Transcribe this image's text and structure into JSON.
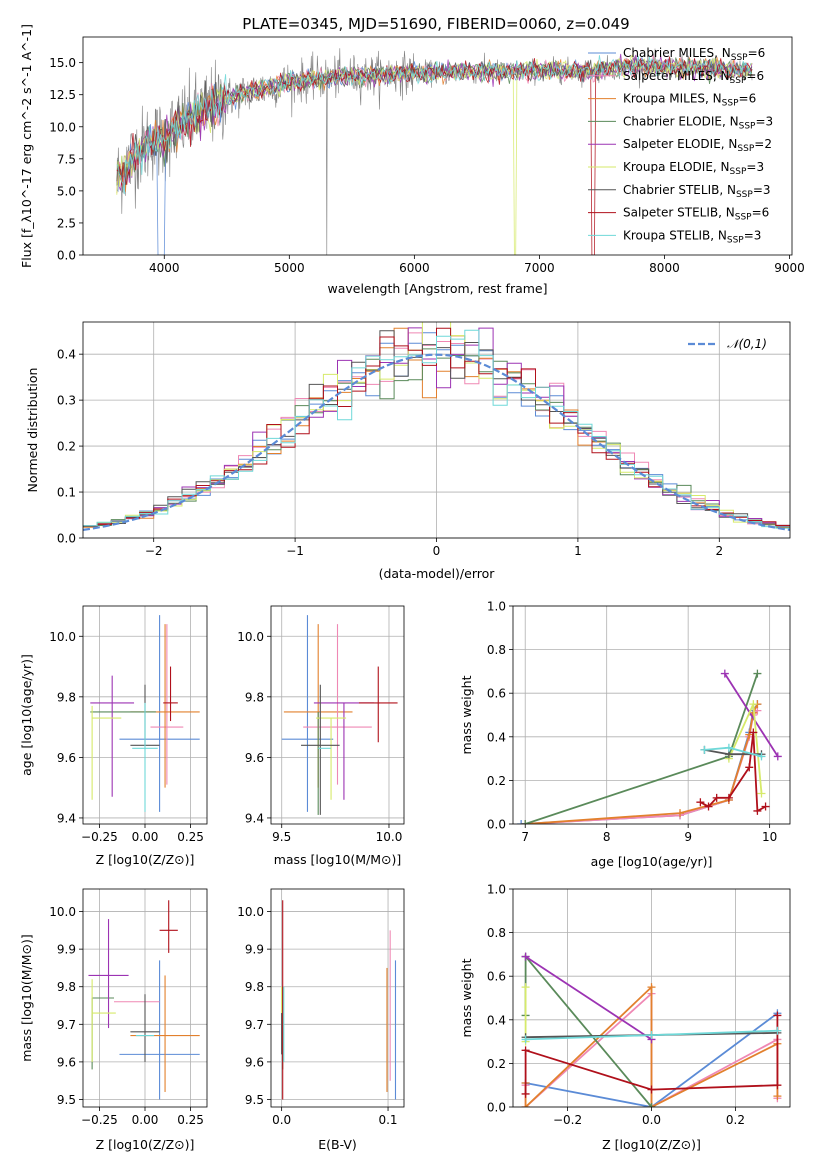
{
  "title": "PLATE=0345, MJD=51690, FIBERID=0060, z=0.049",
  "models": [
    {
      "name": "Chabrier MILES",
      "nssp": 6,
      "color": "#5b8bd6"
    },
    {
      "name": "Salpeter MILES",
      "nssp": 6,
      "color": "#ef88b4"
    },
    {
      "name": "Kroupa MILES",
      "nssp": 6,
      "color": "#e2802d"
    },
    {
      "name": "Chabrier ELODIE",
      "nssp": 3,
      "color": "#5a8a5a"
    },
    {
      "name": "Salpeter ELODIE",
      "nssp": 2,
      "color": "#9c33b3"
    },
    {
      "name": "Kroupa ELODIE",
      "nssp": 3,
      "color": "#d6ea6a"
    },
    {
      "name": "Chabrier STELIB",
      "nssp": 3,
      "color": "#555555"
    },
    {
      "name": "Salpeter STELIB",
      "nssp": 6,
      "color": "#b0101b"
    },
    {
      "name": "Kroupa STELIB",
      "nssp": 3,
      "color": "#6fd8d8"
    }
  ],
  "chart_data": [
    {
      "type": "line",
      "id": "spectrum",
      "xlabel": "wavelength [Angstrom, rest frame]",
      "ylabel": "Flux [f_λ10^-17 erg cm^-2 s^-1 A^-1]",
      "xlim": [
        3350,
        9020
      ],
      "ylim": [
        0,
        17
      ],
      "xticks": [
        4000,
        5000,
        6000,
        7000,
        8000,
        9000
      ],
      "yticks": [
        0.0,
        2.5,
        5.0,
        7.5,
        10.0,
        12.5,
        15.0
      ],
      "grid": false,
      "legend": "upper right",
      "data_series": {
        "name": "data",
        "color": "#808080"
      },
      "continuum": {
        "x": [
          3620,
          3700,
          3800,
          3900,
          4000,
          4100,
          4200,
          4300,
          4400,
          4500,
          4600,
          4800,
          5000,
          5200,
          5400,
          5600,
          5800,
          6000,
          6200,
          6400,
          6600,
          6800,
          7000,
          7200,
          7400,
          7600,
          7800,
          8000,
          8200,
          8400,
          8600,
          8700
        ],
        "y": [
          6.0,
          7.0,
          8.2,
          9.0,
          8.9,
          10.0,
          10.6,
          11.1,
          11.7,
          12.2,
          12.5,
          13.0,
          13.5,
          13.7,
          13.9,
          14.0,
          14.1,
          14.2,
          14.2,
          14.3,
          14.3,
          14.3,
          14.4,
          14.4,
          14.3,
          14.6,
          14.8,
          14.6,
          14.6,
          14.5,
          14.4,
          14.4
        ]
      },
      "model_drops": [
        {
          "model": "Chabrier MILES",
          "from": 3950,
          "to": 4000,
          "min": 0
        },
        {
          "model": "Kroupa ELODIE",
          "from": 6800,
          "to": 6810,
          "min": 0
        },
        {
          "model": "Salpeter STELIB",
          "from": 7420,
          "to": 7440,
          "min": 0
        }
      ]
    },
    {
      "type": "histogram",
      "id": "residuals",
      "xlabel": "(data-model)/error",
      "ylabel": "Normed distribution",
      "xlim": [
        -2.5,
        2.5
      ],
      "ylim": [
        0,
        0.47
      ],
      "xticks": [
        -2,
        -1,
        0,
        1,
        2
      ],
      "yticks": [
        0.0,
        0.1,
        0.2,
        0.3,
        0.4
      ],
      "grid": true,
      "bin_width": 0.1,
      "reference": {
        "name": "𝒩(0,1)",
        "type": "gaussian",
        "mean": 0,
        "sigma": 1,
        "color": "#5b8bd6"
      },
      "legend": "upper right"
    },
    {
      "type": "errorbar",
      "id": "age_vs_Z",
      "xlabel": "Z [log10(Z/Z⊙)]",
      "ylabel": "age [log10(age/yr)]",
      "xlim": [
        -0.34,
        0.34
      ],
      "ylim": [
        9.38,
        10.1
      ],
      "xticks": [
        -0.25,
        0.0,
        0.25
      ],
      "yticks": [
        9.4,
        9.6,
        9.8,
        10.0
      ],
      "grid": true,
      "points": [
        {
          "model": "Chabrier MILES",
          "x": 0.08,
          "y": 9.66,
          "xerr": [
            0.22,
            0.22
          ],
          "yerr": [
            0.24,
            0.41
          ]
        },
        {
          "model": "Salpeter MILES",
          "x": 0.12,
          "y": 9.7,
          "xerr": [
            0.09,
            0.09
          ],
          "yerr": [
            0.19,
            0.34
          ]
        },
        {
          "model": "Kroupa MILES",
          "x": 0.11,
          "y": 9.75,
          "xerr": [
            0.19,
            0.19
          ],
          "yerr": [
            0.25,
            0.29
          ]
        },
        {
          "model": "Chabrier ELODIE",
          "x": -0.12,
          "y": 9.75,
          "xerr": [
            0.18,
            0.18
          ],
          "yerr": [
            0.0,
            0.0
          ]
        },
        {
          "model": "Salpeter ELODIE",
          "x": -0.18,
          "y": 9.78,
          "xerr": [
            0.12,
            0.12
          ],
          "yerr": [
            0.31,
            0.09
          ]
        },
        {
          "model": "Kroupa ELODIE",
          "x": -0.21,
          "y": 9.73,
          "xerr": [
            0.08,
            0.08
          ],
          "yerr": [
            0.0,
            0.0
          ]
        },
        {
          "model": "Kroupa ELODIE",
          "x": -0.29,
          "y": 9.77,
          "xerr": [
            0.0,
            0.0
          ],
          "yerr": [
            0.31,
            0.0
          ]
        },
        {
          "model": "Chabrier STELIB",
          "x": 0.0,
          "y": 9.64,
          "xerr": [
            0.08,
            0.08
          ],
          "yerr": [
            0.0,
            0.2
          ]
        },
        {
          "model": "Salpeter STELIB",
          "x": 0.14,
          "y": 9.78,
          "xerr": [
            0.04,
            0.04
          ],
          "yerr": [
            0.06,
            0.12
          ]
        },
        {
          "model": "Kroupa STELIB",
          "x": 0.0,
          "y": 9.63,
          "xerr": [
            0.07,
            0.07
          ],
          "yerr": [
            0.21,
            0.15
          ]
        }
      ]
    },
    {
      "type": "errorbar",
      "id": "age_vs_mass",
      "xlabel": "mass [log10(M/M⊙)]",
      "ylabel": "",
      "xlim": [
        9.45,
        10.07
      ],
      "ylim": [
        9.38,
        10.1
      ],
      "xticks": [
        9.5,
        10.0
      ],
      "yticks": [
        9.4,
        9.6,
        9.8,
        10.0
      ],
      "grid": true,
      "points": [
        {
          "model": "Chabrier MILES",
          "x": 9.62,
          "y": 9.66,
          "xerr": [
            0.12,
            0.12
          ],
          "yerr": [
            0.24,
            0.41
          ]
        },
        {
          "model": "Kroupa MILES",
          "x": 9.67,
          "y": 9.75,
          "xerr": [
            0.16,
            0.16
          ],
          "yerr": [
            0.25,
            0.29
          ]
        },
        {
          "model": "Salpeter MILES",
          "x": 9.76,
          "y": 9.7,
          "xerr": [
            0.16,
            0.16
          ],
          "yerr": [
            0.19,
            0.34
          ]
        },
        {
          "model": "Chabrier ELODIE",
          "x": 9.67,
          "y": 9.75,
          "xerr": [
            0.0,
            0.0
          ],
          "yerr": [
            0.34,
            0.0
          ]
        },
        {
          "model": "Salpeter ELODIE",
          "x": 9.79,
          "y": 9.78,
          "xerr": [
            0.14,
            0.14
          ],
          "yerr": [
            0.32,
            0.0
          ]
        },
        {
          "model": "Kroupa ELODIE",
          "x": 9.73,
          "y": 9.73,
          "xerr": [
            0.07,
            0.07
          ],
          "yerr": [
            0.27,
            0.0
          ]
        },
        {
          "model": "Chabrier STELIB",
          "x": 9.68,
          "y": 9.64,
          "xerr": [
            0.09,
            0.09
          ],
          "yerr": [
            0.23,
            0.2
          ]
        },
        {
          "model": "Salpeter STELIB",
          "x": 9.95,
          "y": 9.78,
          "xerr": [
            0.09,
            0.09
          ],
          "yerr": [
            0.13,
            0.12
          ]
        },
        {
          "model": "Kroupa STELIB",
          "x": 9.7,
          "y": 9.63,
          "xerr": [
            0.03,
            0.03
          ],
          "yerr": [
            0.0,
            0.0
          ]
        }
      ]
    },
    {
      "type": "line",
      "id": "mass_weight_vs_age",
      "xlabel": "age [log10(age/yr)]",
      "ylabel": "mass weight",
      "xlim": [
        6.85,
        10.25
      ],
      "ylim": [
        0,
        1
      ],
      "xticks": [
        7,
        8,
        9,
        10
      ],
      "yticks": [
        0.0,
        0.2,
        0.4,
        0.6,
        0.8,
        1.0
      ],
      "grid": true,
      "series": [
        {
          "name": "Chabrier MILES",
          "x": [
            6.95,
            8.9,
            9.5,
            9.75,
            9.8,
            9.85
          ],
          "y": [
            0.0,
            0.04,
            0.11,
            0.42,
            0.52,
            0.55
          ]
        },
        {
          "name": "Salpeter MILES",
          "x": [
            7.0,
            8.9,
            9.5,
            9.75,
            9.8,
            9.85
          ],
          "y": [
            0.0,
            0.04,
            0.11,
            0.4,
            0.5,
            0.52
          ]
        },
        {
          "name": "Kroupa MILES",
          "x": [
            7.0,
            8.9,
            9.5,
            9.75,
            9.8,
            9.85
          ],
          "y": [
            0.0,
            0.05,
            0.11,
            0.41,
            0.51,
            0.55
          ]
        },
        {
          "name": "Chabrier ELODIE",
          "x": [
            7.0,
            9.5,
            9.85
          ],
          "y": [
            0.0,
            0.31,
            0.69
          ]
        },
        {
          "name": "Salpeter ELODIE",
          "x": [
            9.45,
            10.1
          ],
          "y": [
            0.69,
            0.31
          ]
        },
        {
          "name": "Kroupa ELODIE",
          "x": [
            9.5,
            9.8,
            9.9
          ],
          "y": [
            0.3,
            0.55,
            0.14
          ]
        },
        {
          "name": "Chabrier STELIB",
          "x": [
            9.2,
            9.5,
            9.9
          ],
          "y": [
            0.34,
            0.32,
            0.32
          ]
        },
        {
          "name": "Salpeter STELIB",
          "x": [
            9.15,
            9.25,
            9.35,
            9.5,
            9.75,
            9.8,
            9.85,
            9.95
          ],
          "y": [
            0.1,
            0.08,
            0.12,
            0.12,
            0.26,
            0.42,
            0.06,
            0.08
          ]
        },
        {
          "name": "Kroupa STELIB",
          "x": [
            9.2,
            9.5,
            9.9
          ],
          "y": [
            0.34,
            0.35,
            0.31
          ]
        }
      ]
    },
    {
      "type": "errorbar",
      "id": "mass_vs_Z",
      "xlabel": "Z [log10(Z/Z⊙)]",
      "ylabel": "mass [log10(M/M⊙)]",
      "xlim": [
        -0.34,
        0.34
      ],
      "ylim": [
        9.48,
        10.06
      ],
      "xticks": [
        -0.25,
        0.0,
        0.25
      ],
      "yticks": [
        9.5,
        9.6,
        9.7,
        9.8,
        9.9,
        10.0
      ],
      "grid": true,
      "points": [
        {
          "model": "Chabrier MILES",
          "x": 0.08,
          "y": 9.62,
          "xerr": [
            0.22,
            0.22
          ],
          "yerr": [
            0.12,
            0.25
          ]
        },
        {
          "model": "Salpeter MILES",
          "x": 0.0,
          "y": 9.76,
          "xerr": [
            0.17,
            0.08
          ],
          "yerr": [
            0.0,
            0.0
          ]
        },
        {
          "model": "Kroupa MILES",
          "x": 0.11,
          "y": 9.67,
          "xerr": [
            0.19,
            0.19
          ],
          "yerr": [
            0.15,
            0.16
          ]
        },
        {
          "model": "Chabrier ELODIE",
          "x": -0.29,
          "y": 9.77,
          "xerr": [
            0.0,
            0.12
          ],
          "yerr": [
            0.19,
            0.0
          ]
        },
        {
          "model": "Salpeter ELODIE",
          "x": -0.2,
          "y": 9.83,
          "xerr": [
            0.11,
            0.11
          ],
          "yerr": [
            0.14,
            0.15
          ]
        },
        {
          "model": "Kroupa ELODIE",
          "x": -0.29,
          "y": 9.73,
          "xerr": [
            0.0,
            0.13
          ],
          "yerr": [
            0.13,
            0.09
          ]
        },
        {
          "model": "Chabrier STELIB",
          "x": 0.0,
          "y": 9.68,
          "xerr": [
            0.08,
            0.08
          ],
          "yerr": [
            0.08,
            0.1
          ]
        },
        {
          "model": "Salpeter STELIB",
          "x": 0.13,
          "y": 9.95,
          "xerr": [
            0.05,
            0.05
          ],
          "yerr": [
            0.06,
            0.08
          ]
        },
        {
          "model": "Kroupa STELIB",
          "x": 0.0,
          "y": 9.67,
          "xerr": [
            0.05,
            0.05
          ],
          "yerr": [
            0.0,
            0.0
          ]
        }
      ]
    },
    {
      "type": "errorbar",
      "id": "mass_vs_ebv",
      "xlabel": "E(B-V)",
      "ylabel": "",
      "xlim": [
        -0.01,
        0.115
      ],
      "ylim": [
        9.48,
        10.06
      ],
      "xticks": [
        0.0,
        0.1
      ],
      "yticks": [
        9.5,
        9.6,
        9.7,
        9.8,
        9.9,
        10.0
      ],
      "grid": true,
      "points": [
        {
          "model": "Chabrier MILES",
          "x": 0.107,
          "y": 9.68,
          "xerr": [
            0,
            0
          ],
          "yerr": [
            0.18,
            0.19
          ]
        },
        {
          "model": "Salpeter MILES",
          "x": 0.102,
          "y": 9.75,
          "xerr": [
            0,
            0
          ],
          "yerr": [
            0.2,
            0.2
          ]
        },
        {
          "model": "Kroupa MILES",
          "x": 0.099,
          "y": 9.68,
          "xerr": [
            0,
            0
          ],
          "yerr": [
            0.16,
            0.17
          ]
        },
        {
          "model": "Chabrier ELODIE",
          "x": 0.001,
          "y": 9.7,
          "xerr": [
            0,
            0
          ],
          "yerr": [
            0.12,
            0.1
          ]
        },
        {
          "model": "Salpeter ELODIE",
          "x": 0.0,
          "y": 9.83,
          "xerr": [
            0,
            0
          ],
          "yerr": [
            0.0,
            0.0
          ]
        },
        {
          "model": "Kroupa ELODIE",
          "x": 0.0,
          "y": 9.75,
          "xerr": [
            0,
            0
          ],
          "yerr": [
            0.05,
            0.05
          ]
        },
        {
          "model": "Chabrier STELIB",
          "x": 0.0,
          "y": 9.68,
          "xerr": [
            0,
            0
          ],
          "yerr": [
            0.06,
            0.05
          ]
        },
        {
          "model": "Salpeter STELIB",
          "x": 0.001,
          "y": 9.82,
          "xerr": [
            0,
            0
          ],
          "yerr": [
            0.32,
            0.21
          ]
        },
        {
          "model": "Kroupa STELIB",
          "x": 0.002,
          "y": 9.7,
          "xerr": [
            0,
            0
          ],
          "yerr": [
            0.1,
            0.1
          ]
        }
      ]
    },
    {
      "type": "line",
      "id": "mass_weight_vs_Z",
      "xlabel": "Z [log10(Z/Z⊙)]",
      "ylabel": "mass weight",
      "xlim": [
        -0.33,
        0.33
      ],
      "ylim": [
        0,
        1
      ],
      "xticks": [
        -0.2,
        0.0,
        0.2
      ],
      "yticks": [
        0.0,
        0.2,
        0.4,
        0.6,
        0.8,
        1.0
      ],
      "grid": true,
      "series": [
        {
          "name": "Chabrier MILES",
          "x": [
            -0.3,
            0.0,
            0.3
          ],
          "y": [
            0.11,
            0.0,
            0.43
          ]
        },
        {
          "name": "Salpeter MILES",
          "x": [
            -0.3,
            -0.3,
            0.0,
            0.0,
            0.3,
            0.3
          ],
          "y": [
            0.1,
            0.0,
            0.52,
            0.0,
            0.31,
            0.04
          ]
        },
        {
          "name": "Kroupa MILES",
          "x": [
            -0.3,
            -0.3,
            0.0,
            0.0,
            0.3,
            0.3
          ],
          "y": [
            0.11,
            0.0,
            0.55,
            0.0,
            0.29,
            0.05
          ]
        },
        {
          "name": "Chabrier ELODIE",
          "x": [
            -0.3,
            -0.3,
            0.0
          ],
          "y": [
            0.42,
            0.69,
            0.0
          ]
        },
        {
          "name": "Salpeter ELODIE",
          "x": [
            -0.3,
            0.0
          ],
          "y": [
            0.69,
            0.31
          ]
        },
        {
          "name": "Kroupa ELODIE",
          "x": [
            -0.3,
            -0.3
          ],
          "y": [
            0.55,
            0.3
          ]
        },
        {
          "name": "Chabrier STELIB",
          "x": [
            -0.3,
            0.3
          ],
          "y": [
            0.32,
            0.34
          ]
        },
        {
          "name": "Salpeter STELIB",
          "x": [
            -0.3,
            -0.3,
            0.0,
            0.3,
            0.3
          ],
          "y": [
            0.06,
            0.26,
            0.08,
            0.1,
            0.42
          ]
        },
        {
          "name": "Kroupa STELIB",
          "x": [
            -0.3,
            0.0,
            0.3
          ],
          "y": [
            0.31,
            0.33,
            0.35
          ]
        }
      ]
    }
  ]
}
